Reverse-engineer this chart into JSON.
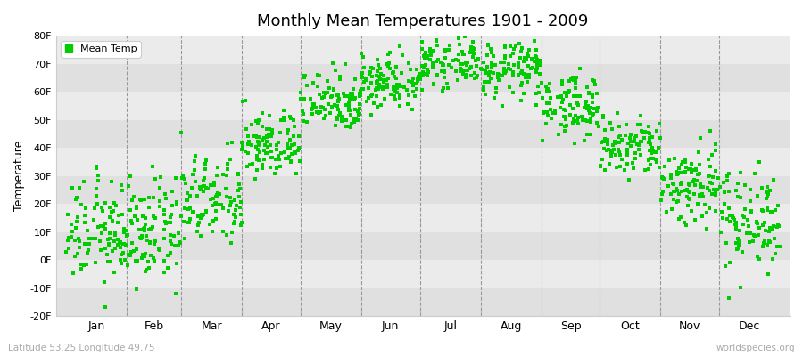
{
  "title": "Monthly Mean Temperatures 1901 - 2009",
  "ylabel": "Temperature",
  "subtitle_left": "Latitude 53.25 Longitude 49.75",
  "subtitle_right": "worldspecies.org",
  "dot_color": "#00cc00",
  "background_color": "#ffffff",
  "plot_bg_color": "#ebebeb",
  "band_color_dark": "#e0e0e0",
  "band_color_light": "#ebebeb",
  "ylim": [
    -20,
    80
  ],
  "yticks": [
    -20,
    -10,
    0,
    10,
    20,
    30,
    40,
    50,
    60,
    70,
    80
  ],
  "ytick_labels": [
    "-20F",
    "-10F",
    "0F",
    "10F",
    "20F",
    "30F",
    "40F",
    "50F",
    "60F",
    "70F",
    "80F"
  ],
  "months": [
    "Jan",
    "Feb",
    "Mar",
    "Apr",
    "May",
    "Jun",
    "Jul",
    "Aug",
    "Sep",
    "Oct",
    "Nov",
    "Dec"
  ],
  "month_days": [
    31,
    28,
    31,
    30,
    31,
    30,
    31,
    31,
    30,
    31,
    30,
    31
  ],
  "month_means_F": [
    10.0,
    10.0,
    21.0,
    41.0,
    57.0,
    64.0,
    70.0,
    68.0,
    55.0,
    40.0,
    27.0,
    15.0
  ],
  "month_stds_F": [
    9.0,
    9.0,
    8.0,
    6.0,
    5.5,
    5.0,
    4.0,
    5.0,
    5.5,
    5.5,
    7.5,
    9.0
  ],
  "n_years": 109,
  "legend_label": "Mean Temp",
  "marker_size": 3,
  "dpi": 100,
  "figsize": [
    9.0,
    4.0
  ]
}
